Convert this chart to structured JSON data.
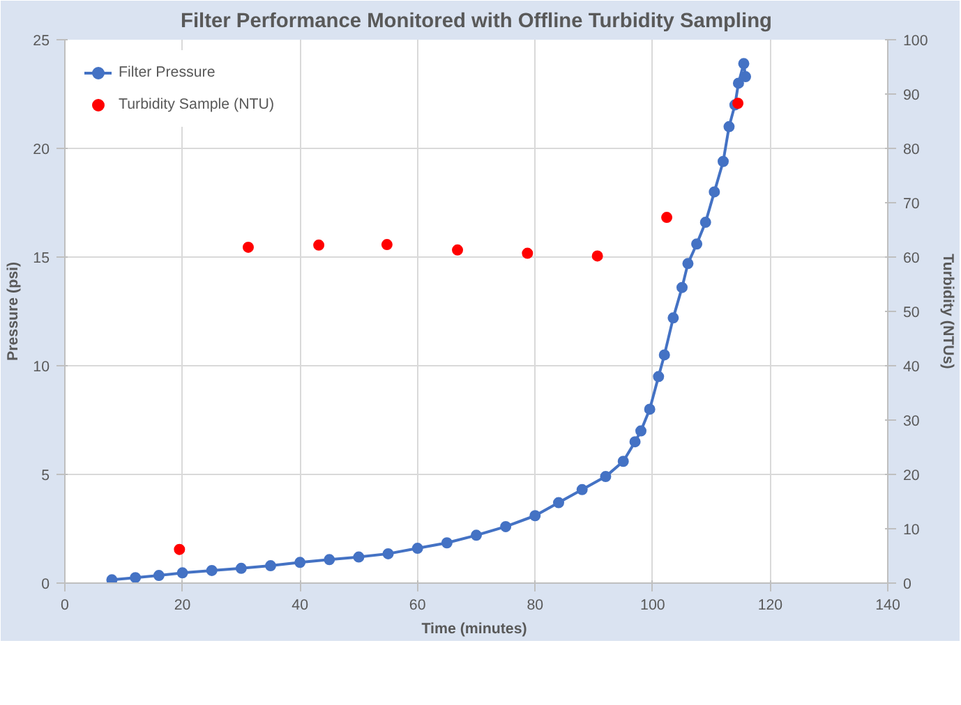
{
  "chart_data": {
    "type": "line",
    "title": "Filter Performance Monitored with Offline Turbidity Sampling",
    "xlabel": "Time  (minutes)",
    "ylabel": "Pressure (psi)",
    "y2label": "Turbidity (NTUs)",
    "xlim": [
      0,
      140
    ],
    "xticks": [
      0,
      20,
      40,
      60,
      80,
      100,
      120,
      140
    ],
    "ylim": [
      0,
      25
    ],
    "yticks": [
      0,
      5,
      10,
      15,
      20,
      25
    ],
    "y2lim": [
      0,
      100
    ],
    "y2ticks": [
      0,
      10,
      20,
      30,
      40,
      50,
      60,
      70,
      80,
      90,
      100
    ],
    "grid": true,
    "legend": "top left",
    "marker": "circle",
    "series": [
      {
        "name": "Filter Pressure",
        "color": "#4472c4",
        "x": [
          8,
          12,
          16,
          20,
          25,
          30,
          35,
          40,
          45,
          50,
          55,
          60,
          65,
          70,
          75,
          80,
          84,
          88,
          92,
          95,
          97,
          98,
          99.5,
          101,
          102,
          103.5,
          105,
          106,
          107.5,
          109,
          110.5,
          112,
          113,
          114,
          114.6,
          115.5,
          115.8
        ],
        "values": [
          0.15,
          0.25,
          0.35,
          0.47,
          0.58,
          0.68,
          0.8,
          0.95,
          1.08,
          1.2,
          1.35,
          1.6,
          1.85,
          2.2,
          2.6,
          3.1,
          3.7,
          4.3,
          4.9,
          5.6,
          6.5,
          7.0,
          8.0,
          9.5,
          10.5,
          12.2,
          13.6,
          14.7,
          15.6,
          16.6,
          18.0,
          19.4,
          21.0,
          22.0,
          23.0,
          23.9,
          23.3
        ]
      },
      {
        "name": "Turbidity Sample (NTU)",
        "type": "scatter",
        "axis": "y2",
        "color": "#ff0000",
        "x": [
          19.5,
          31.2,
          43.2,
          54.8,
          66.8,
          78.7,
          90.6,
          102.4,
          114.5
        ],
        "values": [
          6.2,
          61.8,
          62.2,
          62.3,
          61.3,
          60.7,
          60.2,
          67.3,
          88.3
        ]
      }
    ]
  }
}
